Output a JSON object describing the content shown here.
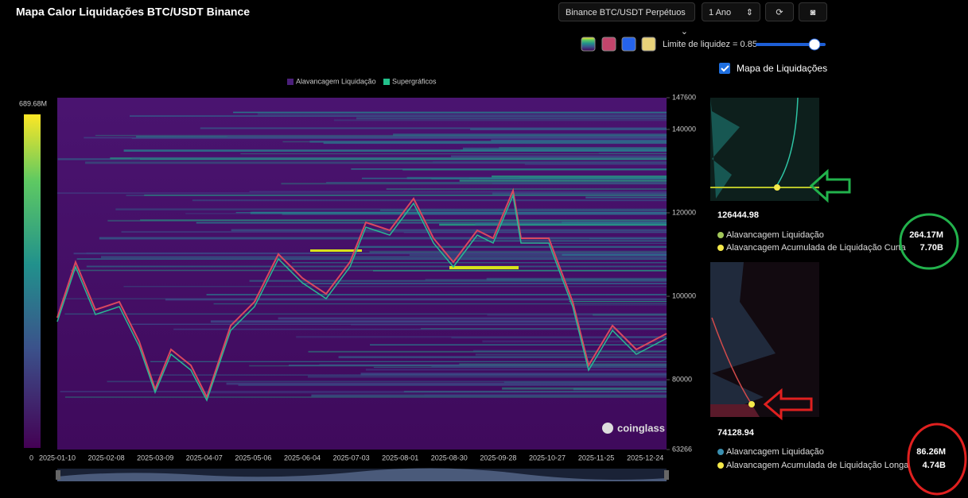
{
  "header": {
    "title": "Mapa Calor Liquidações BTC/USDT Binance",
    "exchange_select": "Binance BTC/USDT Perpétuos",
    "range_select": "1 Ano",
    "threshold_label": "Limite de liquidez = 0.85",
    "map_toggle": "Mapa de Liquidações"
  },
  "legend": [
    "Alavancagem Liquidação",
    "Supergráficos"
  ],
  "colorbar": {
    "max": "689.68M",
    "min": "0"
  },
  "axis": {
    "ylim": [
      63266,
      147600
    ],
    "yticks": [
      147600,
      140000,
      120000,
      100000,
      80000,
      63266
    ],
    "xticks": [
      "2025-01-10",
      "2025-02-08",
      "2025-03-09",
      "2025-04-07",
      "2025-05-06",
      "2025-06-04",
      "2025-07-03",
      "2025-08-01",
      "2025-08-30",
      "2025-09-28",
      "2025-10-27",
      "2025-11-25",
      "2025-12-24"
    ]
  },
  "watermark": "coinglass",
  "side_panel": {
    "upper": {
      "price": "126444.98",
      "rows": [
        {
          "label": "Alavancagem Liquidação",
          "value": "264.17M"
        },
        {
          "label": "Alavancagem Acumulada de Liquidação Curta",
          "value": "7.70B"
        }
      ]
    },
    "lower": {
      "price": "74128.94",
      "rows": [
        {
          "label": "Alavancagem Liquidação",
          "value": "86.26M"
        },
        {
          "label": "Alavancagem Acumulada de Liquidação Longa",
          "value": "4.74B"
        }
      ]
    }
  }
}
